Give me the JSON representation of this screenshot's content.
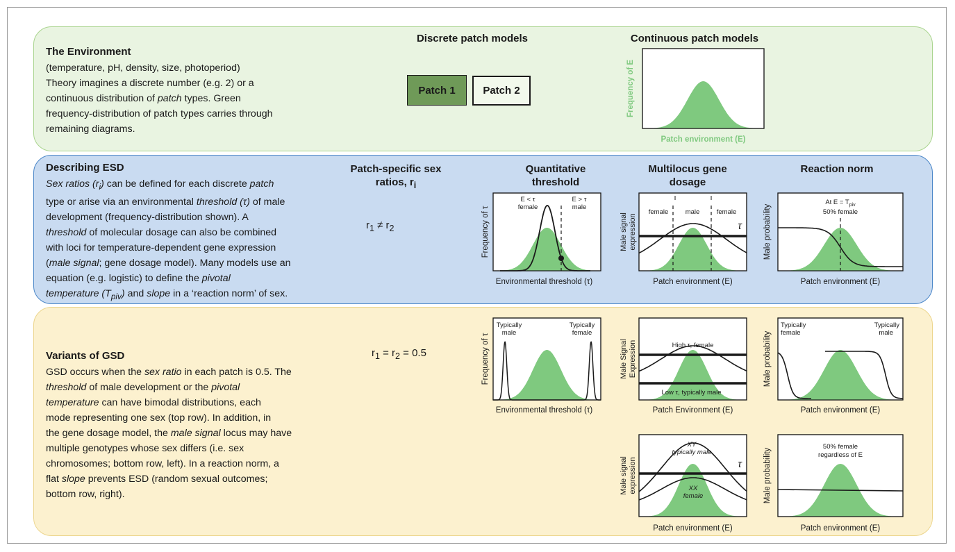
{
  "environment": {
    "heading": "The Environment",
    "lines": [
      "(temperature, pH, density, size, photoperiod)",
      "Theory imagines a discrete number (e.g. 2) or a",
      "continuous distribution of <i>patch</i> types. Green",
      "frequency-distribution of patch types carries through",
      "remaining diagrams."
    ],
    "discrete_header": "Discrete patch models",
    "continuous_header": "Continuous patch models",
    "patch1": "Patch 1",
    "patch2": "Patch 2",
    "cont_ylabel": "Frequency of E",
    "cont_xlabel": "Patch environment (E)"
  },
  "esd": {
    "heading": "Describing ESD",
    "lines": [
      "<i>Sex ratios (r<sub>i</sub>)</i> can be defined for each discrete <i>patch</i>",
      "type or arise via an environmental <i>threshold (τ)</i> of male",
      "development (frequency-distribution shown). A",
      "<i>threshold</i> of molecular dosage can also be combined",
      "with loci for temperature-dependent gene expression",
      "(<i>male signal</i>; gene dosage model). Many models use an",
      "equation (e.g. logistic) to define the <i>pivotal</i>",
      "<i>temperature (T<sub>piv</sub>)</i> and <i>slope</i> in a ‘reaction norm’ of sex."
    ],
    "col_patch_header": "Patch-specific sex ratios, r<sub>i</sub>",
    "ratio": "r<sub>1</sub> ≠ r<sub>2</sub>",
    "col_quant_header": "Quantitative threshold",
    "col_multi_header": "Multilocus gene dosage",
    "col_react_header": "Reaction norm",
    "quant_ylabel": "Frequency of τ",
    "quant_xlabel": "Environmental threshold (τ)",
    "quant_left_label": [
      "E < τ",
      "female"
    ],
    "quant_right_label": [
      "E > τ",
      "male"
    ],
    "multi_ylabel": [
      "Male signal",
      "expression"
    ],
    "multi_xlabel": "Patch environment (E)",
    "multi_labels": [
      "female",
      "male",
      "female"
    ],
    "multi_tau": "τ",
    "react_ylabel": "Male probability",
    "react_xlabel": "Patch environment (E)",
    "react_label_1": "At E = T<tspan baseline-shift=\"-3\" font-size=\"7\">piv</tspan>",
    "react_label_2": "50% female"
  },
  "gsd": {
    "heading": "Variants of GSD",
    "lines": [
      "GSD occurs when the <i>sex ratio</i> in each patch is 0.5. The",
      "<i>threshold</i> of male development or the <i>pivotal</i>",
      "<i>temperature</i> can have bimodal distributions, each",
      "mode representing one sex (top row). In addition, in",
      "the gene dosage model, the <i>male signal</i> locus may have",
      "multiple genotypes whose sex differs (i.e. sex",
      "chromosomes; bottom row, left). In a reaction norm, a",
      "flat <i>slope</i> prevents ESD (random sexual outcomes;",
      "bottom row, right)."
    ],
    "ratio": "r<sub>1</sub> = r<sub>2</sub> = 0.5",
    "quant_ylabel": "Frequency of τ",
    "quant_xlabel": "Environmental threshold (τ)",
    "quant_left_label": [
      "Typically",
      "male"
    ],
    "quant_right_label": [
      "Typically",
      "female"
    ],
    "multi_top_ylabel": [
      "Male Signal",
      "Expression"
    ],
    "multi_top_xlabel": "Patch Environment (E)",
    "multi_top_high": "High τ, female",
    "multi_top_low": "Low τ, typically male",
    "react_top_ylabel": "Male probability",
    "react_top_xlabel": "Patch environment (E)",
    "react_top_left": [
      "Typically",
      "female"
    ],
    "react_top_right": [
      "Typically",
      "male"
    ],
    "multi_bot_ylabel": [
      "Male signal",
      "expression"
    ],
    "multi_bot_xlabel": "Patch environment (E)",
    "multi_bot_xy": [
      "XY",
      "typically male"
    ],
    "multi_bot_xx": [
      "XX",
      "female"
    ],
    "multi_bot_tau": "τ",
    "react_bot_ylabel": "Male probability",
    "react_bot_xlabel": "Patch environment (E)",
    "react_bot_label": [
      "50% female",
      "regardless of E"
    ]
  },
  "colors": {
    "green_fill": "#7fc97f",
    "env_band": "#e9f4e1",
    "esd_band": "#c9dbf1",
    "gsd_band": "#fcf1cf",
    "patch1_fill": "#6f9a58",
    "ylabel_green": "#7fc97f"
  }
}
